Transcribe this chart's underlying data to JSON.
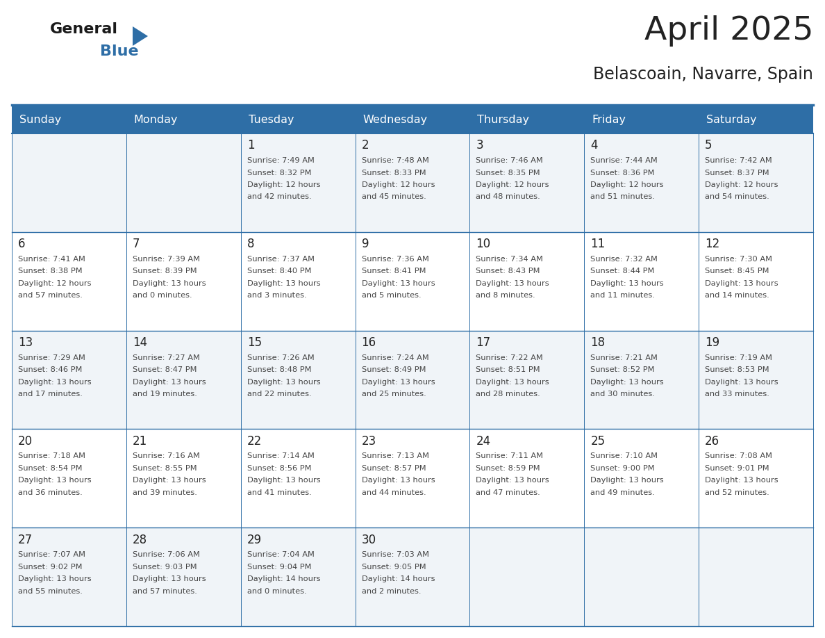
{
  "title": "April 2025",
  "subtitle": "Belascoain, Navarre, Spain",
  "header_color": "#2E6EA6",
  "header_text_color": "#FFFFFF",
  "day_names": [
    "Sunday",
    "Monday",
    "Tuesday",
    "Wednesday",
    "Thursday",
    "Friday",
    "Saturday"
  ],
  "background_color": "#FFFFFF",
  "cell_bg_light": "#F0F4F8",
  "cell_bg_white": "#FFFFFF",
  "grid_color": "#2E6EA6",
  "day_number_color": "#222222",
  "text_color": "#444444",
  "title_color": "#222222",
  "logo_black": "#1a1a1a",
  "logo_blue": "#2E6EA6",
  "days": [
    {
      "day": 1,
      "col": 2,
      "row": 0,
      "sunrise": "7:49 AM",
      "sunset": "8:32 PM",
      "daylight_h": "12",
      "daylight_m": "42"
    },
    {
      "day": 2,
      "col": 3,
      "row": 0,
      "sunrise": "7:48 AM",
      "sunset": "8:33 PM",
      "daylight_h": "12",
      "daylight_m": "45"
    },
    {
      "day": 3,
      "col": 4,
      "row": 0,
      "sunrise": "7:46 AM",
      "sunset": "8:35 PM",
      "daylight_h": "12",
      "daylight_m": "48"
    },
    {
      "day": 4,
      "col": 5,
      "row": 0,
      "sunrise": "7:44 AM",
      "sunset": "8:36 PM",
      "daylight_h": "12",
      "daylight_m": "51"
    },
    {
      "day": 5,
      "col": 6,
      "row": 0,
      "sunrise": "7:42 AM",
      "sunset": "8:37 PM",
      "daylight_h": "12",
      "daylight_m": "54"
    },
    {
      "day": 6,
      "col": 0,
      "row": 1,
      "sunrise": "7:41 AM",
      "sunset": "8:38 PM",
      "daylight_h": "12",
      "daylight_m": "57"
    },
    {
      "day": 7,
      "col": 1,
      "row": 1,
      "sunrise": "7:39 AM",
      "sunset": "8:39 PM",
      "daylight_h": "13",
      "daylight_m": "0"
    },
    {
      "day": 8,
      "col": 2,
      "row": 1,
      "sunrise": "7:37 AM",
      "sunset": "8:40 PM",
      "daylight_h": "13",
      "daylight_m": "3"
    },
    {
      "day": 9,
      "col": 3,
      "row": 1,
      "sunrise": "7:36 AM",
      "sunset": "8:41 PM",
      "daylight_h": "13",
      "daylight_m": "5"
    },
    {
      "day": 10,
      "col": 4,
      "row": 1,
      "sunrise": "7:34 AM",
      "sunset": "8:43 PM",
      "daylight_h": "13",
      "daylight_m": "8"
    },
    {
      "day": 11,
      "col": 5,
      "row": 1,
      "sunrise": "7:32 AM",
      "sunset": "8:44 PM",
      "daylight_h": "13",
      "daylight_m": "11"
    },
    {
      "day": 12,
      "col": 6,
      "row": 1,
      "sunrise": "7:30 AM",
      "sunset": "8:45 PM",
      "daylight_h": "13",
      "daylight_m": "14"
    },
    {
      "day": 13,
      "col": 0,
      "row": 2,
      "sunrise": "7:29 AM",
      "sunset": "8:46 PM",
      "daylight_h": "13",
      "daylight_m": "17"
    },
    {
      "day": 14,
      "col": 1,
      "row": 2,
      "sunrise": "7:27 AM",
      "sunset": "8:47 PM",
      "daylight_h": "13",
      "daylight_m": "19"
    },
    {
      "day": 15,
      "col": 2,
      "row": 2,
      "sunrise": "7:26 AM",
      "sunset": "8:48 PM",
      "daylight_h": "13",
      "daylight_m": "22"
    },
    {
      "day": 16,
      "col": 3,
      "row": 2,
      "sunrise": "7:24 AM",
      "sunset": "8:49 PM",
      "daylight_h": "13",
      "daylight_m": "25"
    },
    {
      "day": 17,
      "col": 4,
      "row": 2,
      "sunrise": "7:22 AM",
      "sunset": "8:51 PM",
      "daylight_h": "13",
      "daylight_m": "28"
    },
    {
      "day": 18,
      "col": 5,
      "row": 2,
      "sunrise": "7:21 AM",
      "sunset": "8:52 PM",
      "daylight_h": "13",
      "daylight_m": "30"
    },
    {
      "day": 19,
      "col": 6,
      "row": 2,
      "sunrise": "7:19 AM",
      "sunset": "8:53 PM",
      "daylight_h": "13",
      "daylight_m": "33"
    },
    {
      "day": 20,
      "col": 0,
      "row": 3,
      "sunrise": "7:18 AM",
      "sunset": "8:54 PM",
      "daylight_h": "13",
      "daylight_m": "36"
    },
    {
      "day": 21,
      "col": 1,
      "row": 3,
      "sunrise": "7:16 AM",
      "sunset": "8:55 PM",
      "daylight_h": "13",
      "daylight_m": "39"
    },
    {
      "day": 22,
      "col": 2,
      "row": 3,
      "sunrise": "7:14 AM",
      "sunset": "8:56 PM",
      "daylight_h": "13",
      "daylight_m": "41"
    },
    {
      "day": 23,
      "col": 3,
      "row": 3,
      "sunrise": "7:13 AM",
      "sunset": "8:57 PM",
      "daylight_h": "13",
      "daylight_m": "44"
    },
    {
      "day": 24,
      "col": 4,
      "row": 3,
      "sunrise": "7:11 AM",
      "sunset": "8:59 PM",
      "daylight_h": "13",
      "daylight_m": "47"
    },
    {
      "day": 25,
      "col": 5,
      "row": 3,
      "sunrise": "7:10 AM",
      "sunset": "9:00 PM",
      "daylight_h": "13",
      "daylight_m": "49"
    },
    {
      "day": 26,
      "col": 6,
      "row": 3,
      "sunrise": "7:08 AM",
      "sunset": "9:01 PM",
      "daylight_h": "13",
      "daylight_m": "52"
    },
    {
      "day": 27,
      "col": 0,
      "row": 4,
      "sunrise": "7:07 AM",
      "sunset": "9:02 PM",
      "daylight_h": "13",
      "daylight_m": "55"
    },
    {
      "day": 28,
      "col": 1,
      "row": 4,
      "sunrise": "7:06 AM",
      "sunset": "9:03 PM",
      "daylight_h": "13",
      "daylight_m": "57"
    },
    {
      "day": 29,
      "col": 2,
      "row": 4,
      "sunrise": "7:04 AM",
      "sunset": "9:04 PM",
      "daylight_h": "14",
      "daylight_m": "0"
    },
    {
      "day": 30,
      "col": 3,
      "row": 4,
      "sunrise": "7:03 AM",
      "sunset": "9:05 PM",
      "daylight_h": "14",
      "daylight_m": "2"
    }
  ]
}
